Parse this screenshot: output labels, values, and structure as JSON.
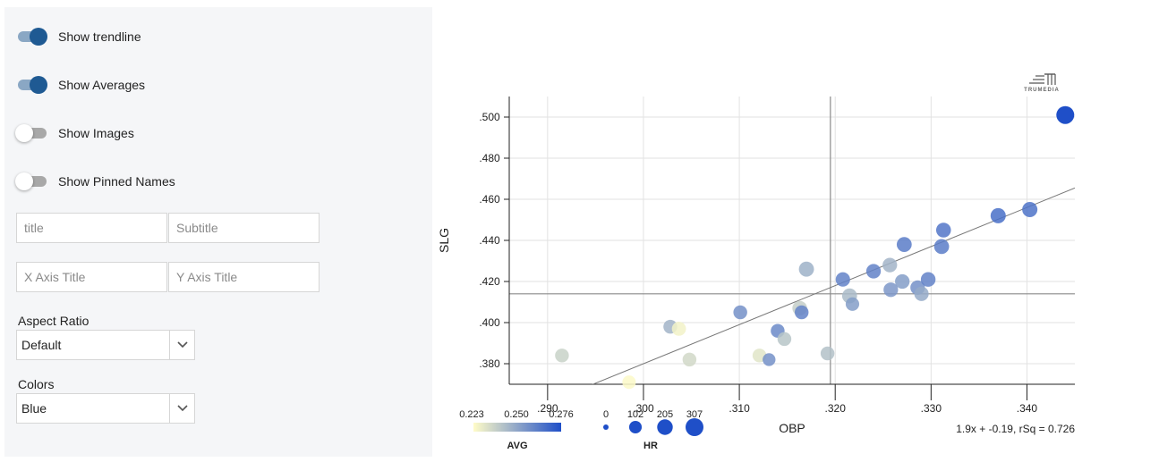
{
  "controls": {
    "toggles": [
      {
        "label": "Show trendline",
        "on": true
      },
      {
        "label": "Show Averages",
        "on": true
      },
      {
        "label": "Show Images",
        "on": false
      },
      {
        "label": "Show Pinned Names",
        "on": false
      }
    ],
    "title_placeholder": "title",
    "subtitle_placeholder": "Subtitle",
    "x_axis_title_placeholder": "X Axis Title",
    "y_axis_title_placeholder": "Y Axis Title",
    "aspect_ratio": {
      "label": "Aspect Ratio",
      "value": "Default"
    },
    "colors": {
      "label": "Colors",
      "value": "Blue"
    }
  },
  "brand": {
    "logo_text": "TRUMEDIA"
  },
  "chart_data": {
    "type": "scatter",
    "xlabel": "OBP",
    "ylabel": "SLG",
    "xlim": [
      0.286,
      0.345
    ],
    "ylim": [
      0.37,
      0.51
    ],
    "x_ticks": [
      0.29,
      0.3,
      0.31,
      0.32,
      0.33,
      0.34
    ],
    "x_tick_labels": [
      ".290",
      ".300",
      ".310",
      ".320",
      ".330",
      ".340"
    ],
    "y_ticks": [
      0.38,
      0.4,
      0.42,
      0.44,
      0.46,
      0.48,
      0.5
    ],
    "y_tick_labels": [
      ".380",
      ".400",
      ".420",
      ".440",
      ".460",
      ".480",
      ".500"
    ],
    "grid": true,
    "averages": {
      "x": 0.3195,
      "y": 0.414
    },
    "trendline": {
      "slope": 1.9,
      "intercept": -0.19,
      "label": "1.9x + -0.19, rSq = 0.726"
    },
    "color_legend": {
      "title": "AVG",
      "ticks": [
        "0.223",
        "0.250",
        "0.276"
      ],
      "range": [
        0.223,
        0.276
      ],
      "colors": [
        "#fffcc8",
        "#1f4fc8"
      ]
    },
    "size_legend": {
      "title": "HR",
      "ticks": [
        "0",
        "102",
        "205",
        "307"
      ],
      "values": [
        0,
        102,
        205,
        307
      ]
    },
    "points": [
      {
        "x": 0.2915,
        "y": 0.384,
        "avg": 0.236,
        "hr": 140
      },
      {
        "x": 0.2985,
        "y": 0.371,
        "avg": 0.224,
        "hr": 130
      },
      {
        "x": 0.3028,
        "y": 0.398,
        "avg": 0.245,
        "hr": 140
      },
      {
        "x": 0.3037,
        "y": 0.397,
        "avg": 0.226,
        "hr": 150
      },
      {
        "x": 0.3048,
        "y": 0.382,
        "avg": 0.234,
        "hr": 140
      },
      {
        "x": 0.3101,
        "y": 0.405,
        "avg": 0.256,
        "hr": 140
      },
      {
        "x": 0.3121,
        "y": 0.384,
        "avg": 0.23,
        "hr": 140
      },
      {
        "x": 0.3131,
        "y": 0.382,
        "avg": 0.256,
        "hr": 110
      },
      {
        "x": 0.314,
        "y": 0.396,
        "avg": 0.258,
        "hr": 140
      },
      {
        "x": 0.3147,
        "y": 0.392,
        "avg": 0.24,
        "hr": 140
      },
      {
        "x": 0.3163,
        "y": 0.407,
        "avg": 0.237,
        "hr": 170
      },
      {
        "x": 0.3165,
        "y": 0.405,
        "avg": 0.26,
        "hr": 140
      },
      {
        "x": 0.317,
        "y": 0.426,
        "avg": 0.246,
        "hr": 185
      },
      {
        "x": 0.3192,
        "y": 0.385,
        "avg": 0.241,
        "hr": 140
      },
      {
        "x": 0.3208,
        "y": 0.421,
        "avg": 0.26,
        "hr": 160
      },
      {
        "x": 0.3215,
        "y": 0.413,
        "avg": 0.243,
        "hr": 180
      },
      {
        "x": 0.3218,
        "y": 0.409,
        "avg": 0.252,
        "hr": 130
      },
      {
        "x": 0.324,
        "y": 0.425,
        "avg": 0.26,
        "hr": 165
      },
      {
        "x": 0.3257,
        "y": 0.428,
        "avg": 0.245,
        "hr": 165
      },
      {
        "x": 0.3258,
        "y": 0.416,
        "avg": 0.254,
        "hr": 165
      },
      {
        "x": 0.327,
        "y": 0.42,
        "avg": 0.252,
        "hr": 165
      },
      {
        "x": 0.3272,
        "y": 0.438,
        "avg": 0.262,
        "hr": 180
      },
      {
        "x": 0.3286,
        "y": 0.417,
        "avg": 0.256,
        "hr": 165
      },
      {
        "x": 0.329,
        "y": 0.414,
        "avg": 0.248,
        "hr": 160
      },
      {
        "x": 0.3297,
        "y": 0.421,
        "avg": 0.26,
        "hr": 170
      },
      {
        "x": 0.3311,
        "y": 0.437,
        "avg": 0.262,
        "hr": 180
      },
      {
        "x": 0.3313,
        "y": 0.445,
        "avg": 0.264,
        "hr": 175
      },
      {
        "x": 0.337,
        "y": 0.452,
        "avg": 0.266,
        "hr": 190
      },
      {
        "x": 0.3403,
        "y": 0.455,
        "avg": 0.265,
        "hr": 190
      },
      {
        "x": 0.344,
        "y": 0.501,
        "avg": 0.276,
        "hr": 307
      }
    ]
  }
}
